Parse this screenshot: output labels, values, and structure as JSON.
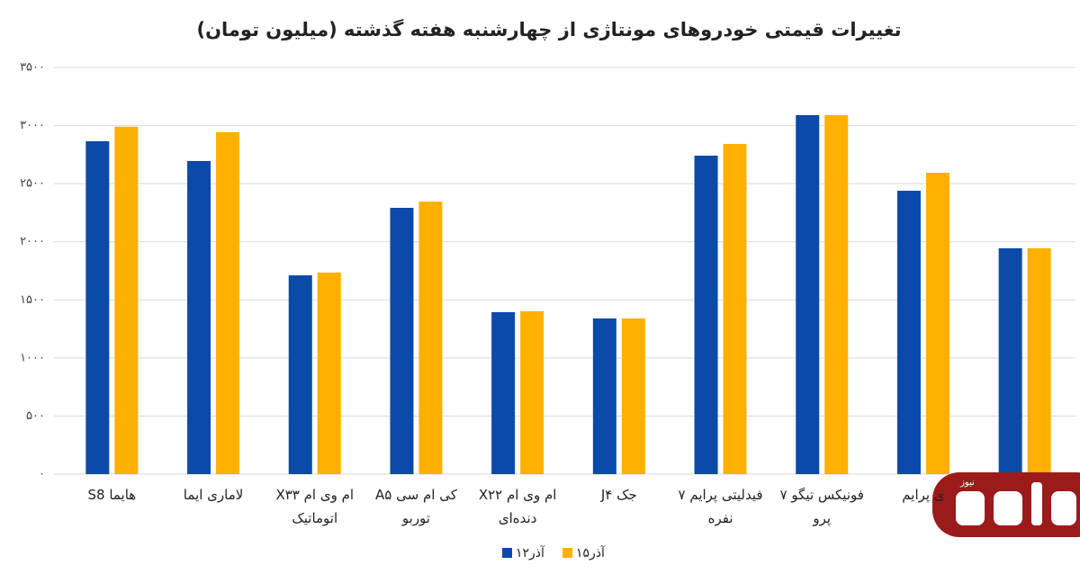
{
  "chart_data": {
    "type": "bar",
    "title": "تغییرات قیمتی خودروهای مونتاژی از چهارشنبه هفته گذشته (میلیون تومان)",
    "categories": [
      "هایما S8",
      "لاماری ایما",
      "ام وی ام X۳۳ اتوماتیک",
      "کی ام سی A۵ توربو",
      "ام وی ام X۲۲ دنده‌ای",
      "جک J۴",
      "فیدلیتی پرایم ۷ نفره",
      "فونیکس تیگو ۷ پرو",
      "ی پرایم",
      null
    ],
    "series": [
      {
        "name": "۱۲آذر",
        "color": "#0b4aa8",
        "values": [
          2865,
          2695,
          1711,
          2292,
          1394,
          1340,
          2741,
          3090,
          2439,
          1944
        ]
      },
      {
        "name": "۱۵آذر",
        "color": "#ffb000",
        "values": [
          2990,
          2943,
          1735,
          2346,
          1402,
          1340,
          2842,
          3090,
          2594,
          1944
        ]
      }
    ],
    "ylim": [
      0,
      3500
    ],
    "yticks": [
      {
        "value": 0,
        "label": "۰"
      },
      {
        "value": 500,
        "label": "۵۰۰"
      },
      {
        "value": 1000,
        "label": "۱۰۰۰"
      },
      {
        "value": 1500,
        "label": "۱۵۰۰"
      },
      {
        "value": 2000,
        "label": "۲۰۰۰"
      },
      {
        "value": 2500,
        "label": "۲۵۰۰"
      },
      {
        "value": 3000,
        "label": "۳۰۰۰"
      },
      {
        "value": 3500,
        "label": "۳۵۰۰"
      }
    ],
    "grid": true,
    "legend": "bottom"
  },
  "logo": {
    "text": "نیوز"
  }
}
